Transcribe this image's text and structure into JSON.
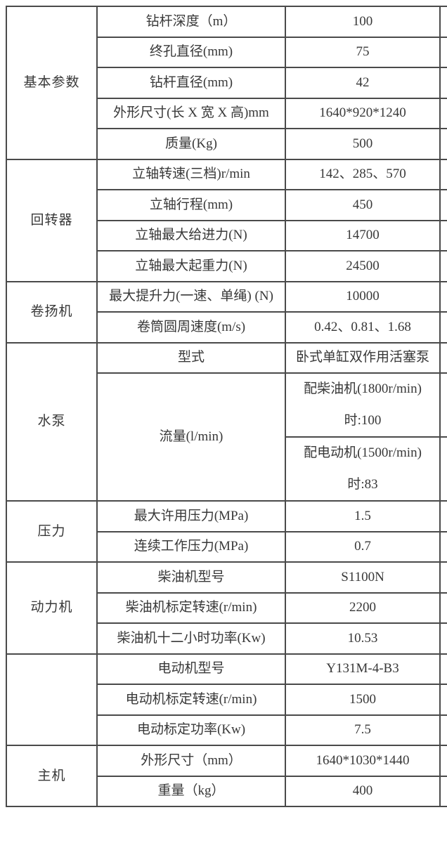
{
  "colors": {
    "border": "#4a4a4a",
    "text": "#383838",
    "background": "#ffffff"
  },
  "table": {
    "sections": [
      {
        "category": "基本参数",
        "rows": [
          {
            "label": "钻杆深度（m）",
            "value": "100"
          },
          {
            "label": "终孔直径(mm)",
            "value": "75"
          },
          {
            "label": "钻杆直径(mm)",
            "value": "42"
          },
          {
            "label": "外形尺寸(长 X 宽 X 高)mm",
            "value": "1640*920*1240"
          },
          {
            "label": "质量(Kg)",
            "value": "500"
          }
        ]
      },
      {
        "category": "回转器",
        "rows": [
          {
            "label": "立轴转速(三档)r/min",
            "value": "142、285、570"
          },
          {
            "label": "立轴行程(mm)",
            "value": "450"
          },
          {
            "label": "立轴最大给进力(N)",
            "value": "14700"
          },
          {
            "label": "立轴最大起重力(N)",
            "value": "24500"
          }
        ]
      },
      {
        "category": "卷扬机",
        "rows": [
          {
            "label": "最大提升力(一速、单绳) (N)",
            "value": "10000"
          },
          {
            "label": "卷筒圆周速度(m/s)",
            "value": "0.42、0.81、1.68"
          }
        ]
      },
      {
        "category": "水泵",
        "rows": [
          {
            "label": "型式",
            "value": "卧式单缸双作用活塞泵"
          }
        ],
        "flow": {
          "label": "流量(l/min)",
          "options": [
            {
              "line1": "配柴油机(1800r/min)",
              "line2": "时:100"
            },
            {
              "line1": "配电动机(1500r/min)",
              "line2": "时:83"
            }
          ]
        }
      },
      {
        "category": "压力",
        "rows": [
          {
            "label": "最大许用压力(MPa)",
            "value": "1.5"
          },
          {
            "label": "连续工作压力(MPa)",
            "value": "0.7"
          }
        ]
      },
      {
        "category": "动力机",
        "rows": [
          {
            "label": "柴油机型号",
            "value": "S1100N"
          },
          {
            "label": "柴油机标定转速(r/min)",
            "value": "2200"
          },
          {
            "label": "柴油机十二小时功率(Kw)",
            "value": "10.53"
          }
        ]
      },
      {
        "category": "",
        "rows": [
          {
            "label": "电动机型号",
            "value": "Y131M-4-B3"
          },
          {
            "label": "电动机标定转速(r/min)",
            "value": "1500"
          },
          {
            "label": "电动标定功率(Kw)",
            "value": "7.5"
          }
        ]
      },
      {
        "category": "主机",
        "rows": [
          {
            "label": "外形尺寸（mm）",
            "value": "1640*1030*1440"
          },
          {
            "label": "重量（kg）",
            "value": "400"
          }
        ]
      }
    ]
  }
}
